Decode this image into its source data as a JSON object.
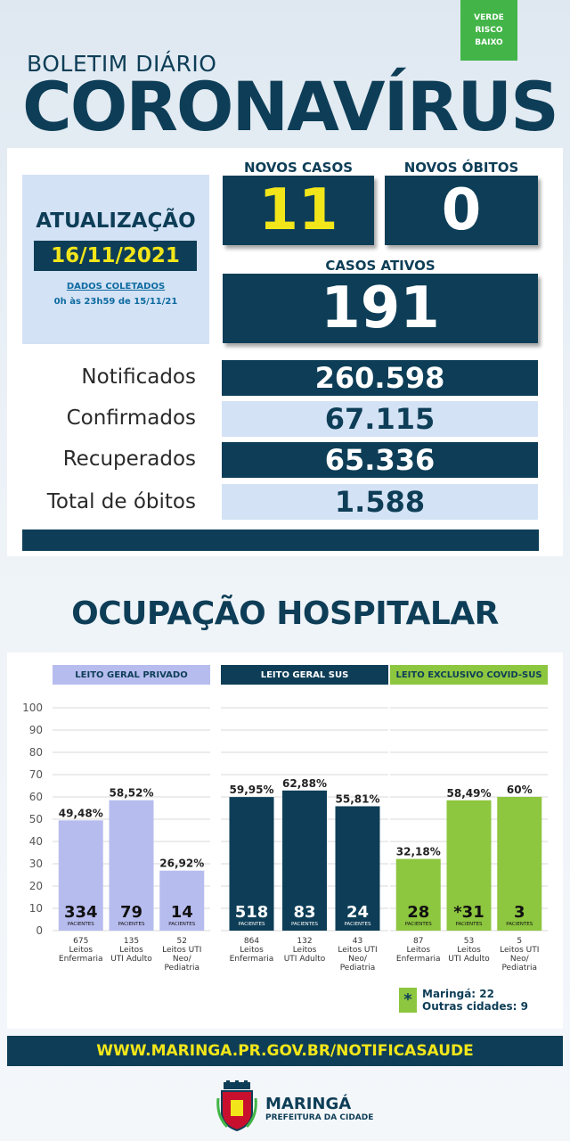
{
  "risk": {
    "line1": "VERDE",
    "line2": "RISCO",
    "line3": "BAIXO",
    "color": "#43b548"
  },
  "header": {
    "subtitle": "BOLETIM DIÁRIO",
    "title": "CORONAVÍRUS"
  },
  "update": {
    "title": "ATUALIZAÇÃO",
    "date": "16/11/2021",
    "note1": "DADOS COLETADOS",
    "note2": "0h às 23h59 de 15/11/21"
  },
  "cases": {
    "new_cases_label": "NOVOS CASOS",
    "new_cases": "11",
    "new_deaths_label": "NOVOS ÓBITOS",
    "new_deaths": "0",
    "active_label": "CASOS ATIVOS",
    "active": "191"
  },
  "totals": [
    {
      "label": "Notificados",
      "value": "260.598"
    },
    {
      "label": "Confirmados",
      "value": "67.115"
    },
    {
      "label": "Recuperados",
      "value": "65.336"
    },
    {
      "label": "Total de óbitos",
      "value": "1.588"
    }
  ],
  "hospital_title": "OCUPAÇÃO HOSPITALAR",
  "colors": {
    "navy": "#0e3e57",
    "lavender": "#b7bcef",
    "green": "#8dc63f",
    "yellow": "#f2e61a"
  },
  "chart_data": {
    "type": "bar",
    "ylim": [
      0,
      100
    ],
    "yticks": [
      "100",
      "90",
      "80",
      "70",
      "60",
      "50",
      "40",
      "30",
      "20",
      "10",
      "0"
    ],
    "patients_label": "PACIENTES",
    "groups": [
      {
        "title": "LEITO GERAL PRIVADO",
        "color": "#b7bcef",
        "header_color": "#b7bcef",
        "bars": [
          {
            "pct": 49.48,
            "pct_label": "49,48%",
            "patients": "334",
            "beds": "675",
            "type_label": "Leitos Enfermaria"
          },
          {
            "pct": 58.52,
            "pct_label": "58,52%",
            "patients": "79",
            "beds": "135",
            "type_label": "Leitos UTI Adulto"
          },
          {
            "pct": 26.92,
            "pct_label": "26,92%",
            "patients": "14",
            "beds": "52",
            "type_label": "Leitos UTI Neo/ Pediatria"
          }
        ]
      },
      {
        "title": "LEITO GERAL SUS",
        "color": "#0e3e57",
        "header_color": "#0e3e57",
        "bars": [
          {
            "pct": 59.95,
            "pct_label": "59,95%",
            "patients": "518",
            "beds": "864",
            "type_label": "Leitos Enfermaria"
          },
          {
            "pct": 62.88,
            "pct_label": "62,88%",
            "patients": "83",
            "beds": "132",
            "type_label": "Leitos UTI Adulto"
          },
          {
            "pct": 55.81,
            "pct_label": "55,81%",
            "patients": "24",
            "beds": "43",
            "type_label": "Leitos UTI Neo/ Pediatria"
          }
        ]
      },
      {
        "title": "LEITO EXCLUSIVO COVID-SUS",
        "color": "#8dc63f",
        "header_color": "#8dc63f",
        "bars": [
          {
            "pct": 32.18,
            "pct_label": "32,18%",
            "patients": "28",
            "beds": "87",
            "type_label": "Leitos Enfermaria"
          },
          {
            "pct": 58.49,
            "pct_label": "58,49%",
            "patients": "*31",
            "beds": "53",
            "type_label": "Leitos UTI Adulto"
          },
          {
            "pct": 60,
            "pct_label": "60%",
            "patients": "3",
            "beds": "5",
            "type_label": "Leitos UTI Neo/ Pediatria"
          }
        ]
      }
    ]
  },
  "legend": {
    "mark": "*",
    "line1": "Maringá: 22",
    "line2": "Outras cidades: 9"
  },
  "footer": {
    "url": "WWW.MARINGA.PR.GOV.BR/NOTIFICASAUDE"
  },
  "logo": {
    "name": "MARINGÁ",
    "sub": "PREFEITURA DA CIDADE"
  }
}
